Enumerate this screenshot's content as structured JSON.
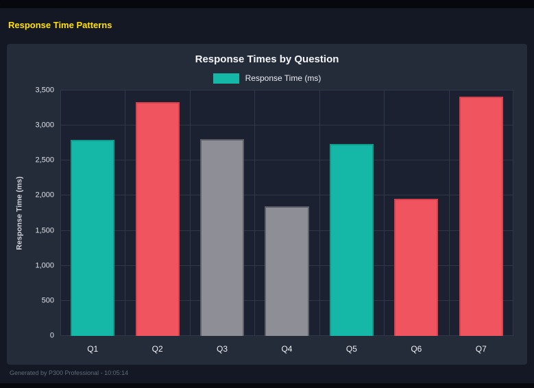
{
  "page": {
    "header_title": "Response Time Patterns",
    "footer": "Generated by P300 Professional - 10:05:14"
  },
  "chart": {
    "title": "Response Times by Question",
    "legend_label": "Response Time (ms)",
    "legend_color": "#15b8a6",
    "ylabel": "Response Time (ms)"
  },
  "chart_data": {
    "type": "bar",
    "title": "Response Times by Question",
    "categories": [
      "Q1",
      "Q2",
      "Q3",
      "Q4",
      "Q5",
      "Q6",
      "Q7"
    ],
    "values": [
      2800,
      3330,
      2810,
      1850,
      2740,
      1960,
      3410
    ],
    "series": [
      {
        "name": "Response Time (ms)",
        "values": [
          2800,
          3330,
          2810,
          1850,
          2740,
          1960,
          3410
        ]
      }
    ],
    "bar_colors": [
      "#15b8a6",
      "#f0545e",
      "#8e8e96",
      "#8e8e96",
      "#15b8a6",
      "#f0545e",
      "#f0545e"
    ],
    "bar_border_colors": [
      "#0f9a8b",
      "#d8414c",
      "#5f5f67",
      "#5f5f67",
      "#0f9a8b",
      "#d8414c",
      "#d8414c"
    ],
    "xlabel": "",
    "ylabel": "Response Time (ms)",
    "ylim": [
      0,
      3500
    ],
    "ytick_step": 500,
    "ytick_labels": [
      "0",
      "500",
      "1,000",
      "1,500",
      "2,000",
      "2,500",
      "3,000",
      "3,500"
    ],
    "grid": true,
    "legend_position": "top"
  }
}
